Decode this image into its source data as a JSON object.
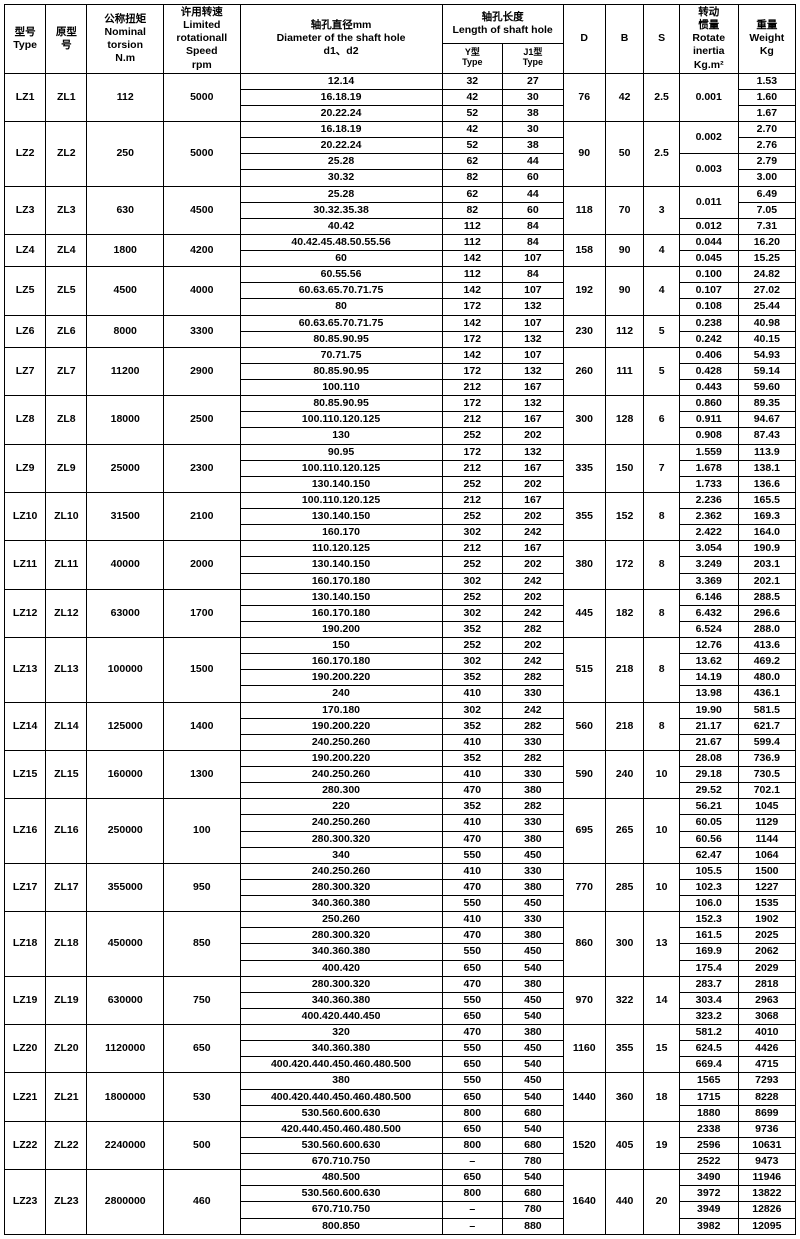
{
  "headers": {
    "type": "型号\nType",
    "orig": "原型\n号",
    "torsion": "公称扭矩\nNominal\ntorsion\nN.m",
    "speed": "许用转速\nLimited\nrotationall\nSpeed\nrpm",
    "dia": "轴孔直径mm\nDiameter of the shaft hole\nd1、d2",
    "len": "轴孔长度\nLength of shaft hole",
    "ytype": "Y型\nType",
    "j1type": "J1型\nType",
    "D": "D",
    "B": "B",
    "S": "S",
    "inertia": "转动\n惯量\nRotate\ninertia\nKg.m²",
    "weight": "重量\nWeight\nKg"
  },
  "groups": [
    {
      "type": "LZ1",
      "orig": "ZL1",
      "tor": "112",
      "rpm": "5000",
      "D": "76",
      "B": "42",
      "S": "2.5",
      "rows": [
        {
          "dia": "12.14",
          "y": "32",
          "j": "27",
          "in": "0.001",
          "wt": "1.53",
          "inSpan": 3
        },
        {
          "dia": "16.18.19",
          "y": "42",
          "j": "30",
          "wt": "1.60"
        },
        {
          "dia": "20.22.24",
          "y": "52",
          "j": "38",
          "wt": "1.67"
        }
      ]
    },
    {
      "type": "LZ2",
      "orig": "ZL2",
      "tor": "250",
      "rpm": "5000",
      "D": "90",
      "B": "50",
      "S": "2.5",
      "rows": [
        {
          "dia": "16.18.19",
          "y": "42",
          "j": "30",
          "in": "0.002",
          "wt": "2.70",
          "inSpan": 2
        },
        {
          "dia": "20.22.24",
          "y": "52",
          "j": "38",
          "wt": "2.76"
        },
        {
          "dia": "25.28",
          "y": "62",
          "j": "44",
          "in": "0.003",
          "wt": "2.79",
          "inSpan": 2
        },
        {
          "dia": "30.32",
          "y": "82",
          "j": "60",
          "wt": "3.00"
        }
      ]
    },
    {
      "type": "LZ3",
      "orig": "ZL3",
      "tor": "630",
      "rpm": "4500",
      "D": "118",
      "B": "70",
      "S": "3",
      "rows": [
        {
          "dia": "25.28",
          "y": "62",
          "j": "44",
          "in": "0.011",
          "wt": "6.49",
          "inSpan": 2
        },
        {
          "dia": "30.32.35.38",
          "y": "82",
          "j": "60",
          "wt": "7.05"
        },
        {
          "dia": "40.42",
          "y": "112",
          "j": "84",
          "in": "0.012",
          "wt": "7.31",
          "inSpan": 1
        }
      ]
    },
    {
      "type": "LZ4",
      "orig": "ZL4",
      "tor": "1800",
      "rpm": "4200",
      "D": "158",
      "B": "90",
      "S": "4",
      "rows": [
        {
          "dia": "40.42.45.48.50.55.56",
          "y": "112",
          "j": "84",
          "in": "0.044",
          "wt": "16.20",
          "inSpan": 1
        },
        {
          "dia": "60",
          "y": "142",
          "j": "107",
          "in": "0.045",
          "wt": "15.25",
          "inSpan": 1
        }
      ]
    },
    {
      "type": "LZ5",
      "orig": "ZL5",
      "tor": "4500",
      "rpm": "4000",
      "D": "192",
      "B": "90",
      "S": "4",
      "rows": [
        {
          "dia": "60.55.56",
          "y": "112",
          "j": "84",
          "in": "0.100",
          "wt": "24.82",
          "inSpan": 1
        },
        {
          "dia": "60.63.65.70.71.75",
          "y": "142",
          "j": "107",
          "in": "0.107",
          "wt": "27.02",
          "inSpan": 1
        },
        {
          "dia": "80",
          "y": "172",
          "j": "132",
          "in": "0.108",
          "wt": "25.44",
          "inSpan": 1
        }
      ]
    },
    {
      "type": "LZ6",
      "orig": "ZL6",
      "tor": "8000",
      "rpm": "3300",
      "D": "230",
      "B": "112",
      "S": "5",
      "rows": [
        {
          "dia": "60.63.65.70.71.75",
          "y": "142",
          "j": "107",
          "in": "0.238",
          "wt": "40.98",
          "inSpan": 1
        },
        {
          "dia": "80.85.90.95",
          "y": "172",
          "j": "132",
          "in": "0.242",
          "wt": "40.15",
          "inSpan": 1
        }
      ]
    },
    {
      "type": "LZ7",
      "orig": "ZL7",
      "tor": "11200",
      "rpm": "2900",
      "D": "260",
      "B": "111",
      "S": "5",
      "rows": [
        {
          "dia": "70.71.75",
          "y": "142",
          "j": "107",
          "in": "0.406",
          "wt": "54.93",
          "inSpan": 1
        },
        {
          "dia": "80.85.90.95",
          "y": "172",
          "j": "132",
          "in": "0.428",
          "wt": "59.14",
          "inSpan": 1
        },
        {
          "dia": "100.110",
          "y": "212",
          "j": "167",
          "in": "0.443",
          "wt": "59.60",
          "inSpan": 1
        }
      ]
    },
    {
      "type": "LZ8",
      "orig": "ZL8",
      "tor": "18000",
      "rpm": "2500",
      "D": "300",
      "B": "128",
      "S": "6",
      "rows": [
        {
          "dia": "80.85.90.95",
          "y": "172",
          "j": "132",
          "in": "0.860",
          "wt": "89.35",
          "inSpan": 1
        },
        {
          "dia": "100.110.120.125",
          "y": "212",
          "j": "167",
          "in": "0.911",
          "wt": "94.67",
          "inSpan": 1
        },
        {
          "dia": "130",
          "y": "252",
          "j": "202",
          "in": "0.908",
          "wt": "87.43",
          "inSpan": 1
        }
      ]
    },
    {
      "type": "LZ9",
      "orig": "ZL9",
      "tor": "25000",
      "rpm": "2300",
      "D": "335",
      "B": "150",
      "S": "7",
      "rows": [
        {
          "dia": "90.95",
          "y": "172",
          "j": "132",
          "in": "1.559",
          "wt": "113.9",
          "inSpan": 1
        },
        {
          "dia": "100.110.120.125",
          "y": "212",
          "j": "167",
          "in": "1.678",
          "wt": "138.1",
          "inSpan": 1
        },
        {
          "dia": "130.140.150",
          "y": "252",
          "j": "202",
          "in": "1.733",
          "wt": "136.6",
          "inSpan": 1
        }
      ]
    },
    {
      "type": "LZ10",
      "orig": "ZL10",
      "tor": "31500",
      "rpm": "2100",
      "D": "355",
      "B": "152",
      "S": "8",
      "rows": [
        {
          "dia": "100.110.120.125",
          "y": "212",
          "j": "167",
          "in": "2.236",
          "wt": "165.5",
          "inSpan": 1
        },
        {
          "dia": "130.140.150",
          "y": "252",
          "j": "202",
          "in": "2.362",
          "wt": "169.3",
          "inSpan": 1
        },
        {
          "dia": "160.170",
          "y": "302",
          "j": "242",
          "in": "2.422",
          "wt": "164.0",
          "inSpan": 1
        }
      ]
    },
    {
      "type": "LZ11",
      "orig": "ZL11",
      "tor": "40000",
      "rpm": "2000",
      "D": "380",
      "B": "172",
      "S": "8",
      "rows": [
        {
          "dia": "110.120.125",
          "y": "212",
          "j": "167",
          "in": "3.054",
          "wt": "190.9",
          "inSpan": 1
        },
        {
          "dia": "130.140.150",
          "y": "252",
          "j": "202",
          "in": "3.249",
          "wt": "203.1",
          "inSpan": 1
        },
        {
          "dia": "160.170.180",
          "y": "302",
          "j": "242",
          "in": "3.369",
          "wt": "202.1",
          "inSpan": 1
        }
      ]
    },
    {
      "type": "LZ12",
      "orig": "ZL12",
      "tor": "63000",
      "rpm": "1700",
      "D": "445",
      "B": "182",
      "S": "8",
      "rows": [
        {
          "dia": "130.140.150",
          "y": "252",
          "j": "202",
          "in": "6.146",
          "wt": "288.5",
          "inSpan": 1
        },
        {
          "dia": "160.170.180",
          "y": "302",
          "j": "242",
          "in": "6.432",
          "wt": "296.6",
          "inSpan": 1
        },
        {
          "dia": "190.200",
          "y": "352",
          "j": "282",
          "in": "6.524",
          "wt": "288.0",
          "inSpan": 1
        }
      ]
    },
    {
      "type": "LZ13",
      "orig": "ZL13",
      "tor": "100000",
      "rpm": "1500",
      "D": "515",
      "B": "218",
      "S": "8",
      "rows": [
        {
          "dia": "150",
          "y": "252",
          "j": "202",
          "in": "12.76",
          "wt": "413.6",
          "inSpan": 1
        },
        {
          "dia": "160.170.180",
          "y": "302",
          "j": "242",
          "in": "13.62",
          "wt": "469.2",
          "inSpan": 1
        },
        {
          "dia": "190.200.220",
          "y": "352",
          "j": "282",
          "in": "14.19",
          "wt": "480.0",
          "inSpan": 1
        },
        {
          "dia": "240",
          "y": "410",
          "j": "330",
          "in": "13.98",
          "wt": "436.1",
          "inSpan": 1
        }
      ]
    },
    {
      "type": "LZ14",
      "orig": "ZL14",
      "tor": "125000",
      "rpm": "1400",
      "D": "560",
      "B": "218",
      "S": "8",
      "rows": [
        {
          "dia": "170.180",
          "y": "302",
          "j": "242",
          "in": "19.90",
          "wt": "581.5",
          "inSpan": 1
        },
        {
          "dia": "190.200.220",
          "y": "352",
          "j": "282",
          "in": "21.17",
          "wt": "621.7",
          "inSpan": 1
        },
        {
          "dia": "240.250.260",
          "y": "410",
          "j": "330",
          "in": "21.67",
          "wt": "599.4",
          "inSpan": 1
        }
      ]
    },
    {
      "type": "LZ15",
      "orig": "ZL15",
      "tor": "160000",
      "rpm": "1300",
      "D": "590",
      "B": "240",
      "S": "10",
      "rows": [
        {
          "dia": "190.200.220",
          "y": "352",
          "j": "282",
          "in": "28.08",
          "wt": "736.9",
          "inSpan": 1
        },
        {
          "dia": "240.250.260",
          "y": "410",
          "j": "330",
          "in": "29.18",
          "wt": "730.5",
          "inSpan": 1
        },
        {
          "dia": "280.300",
          "y": "470",
          "j": "380",
          "in": "29.52",
          "wt": "702.1",
          "inSpan": 1
        }
      ]
    },
    {
      "type": "LZ16",
      "orig": "ZL16",
      "tor": "250000",
      "rpm": "100",
      "D": "695",
      "B": "265",
      "S": "10",
      "rows": [
        {
          "dia": "220",
          "y": "352",
          "j": "282",
          "in": "56.21",
          "wt": "1045",
          "inSpan": 1
        },
        {
          "dia": "240.250.260",
          "y": "410",
          "j": "330",
          "in": "60.05",
          "wt": "1129",
          "inSpan": 1
        },
        {
          "dia": "280.300.320",
          "y": "470",
          "j": "380",
          "in": "60.56",
          "wt": "1144",
          "inSpan": 1
        },
        {
          "dia": "340",
          "y": "550",
          "j": "450",
          "in": "62.47",
          "wt": "1064",
          "inSpan": 1
        }
      ]
    },
    {
      "type": "LZ17",
      "orig": "ZL17",
      "tor": "355000",
      "rpm": "950",
      "D": "770",
      "B": "285",
      "S": "10",
      "rows": [
        {
          "dia": "240.250.260",
          "y": "410",
          "j": "330",
          "in": "105.5",
          "wt": "1500",
          "inSpan": 1
        },
        {
          "dia": "280.300.320",
          "y": "470",
          "j": "380",
          "in": "102.3",
          "wt": "1227",
          "inSpan": 1
        },
        {
          "dia": "340.360.380",
          "y": "550",
          "j": "450",
          "in": "106.0",
          "wt": "1535",
          "inSpan": 1
        }
      ]
    },
    {
      "type": "LZ18",
      "orig": "ZL18",
      "tor": "450000",
      "rpm": "850",
      "D": "860",
      "B": "300",
      "S": "13",
      "rows": [
        {
          "dia": "250.260",
          "y": "410",
          "j": "330",
          "in": "152.3",
          "wt": "1902",
          "inSpan": 1
        },
        {
          "dia": "280.300.320",
          "y": "470",
          "j": "380",
          "in": "161.5",
          "wt": "2025",
          "inSpan": 1
        },
        {
          "dia": "340.360.380",
          "y": "550",
          "j": "450",
          "in": "169.9",
          "wt": "2062",
          "inSpan": 1
        },
        {
          "dia": "400.420",
          "y": "650",
          "j": "540",
          "in": "175.4",
          "wt": "2029",
          "inSpan": 1
        }
      ]
    },
    {
      "type": "LZ19",
      "orig": "ZL19",
      "tor": "630000",
      "rpm": "750",
      "D": "970",
      "B": "322",
      "S": "14",
      "rows": [
        {
          "dia": "280.300.320",
          "y": "470",
          "j": "380",
          "in": "283.7",
          "wt": "2818",
          "inSpan": 1
        },
        {
          "dia": "340.360.380",
          "y": "550",
          "j": "450",
          "in": "303.4",
          "wt": "2963",
          "inSpan": 1
        },
        {
          "dia": "400.420.440.450",
          "y": "650",
          "j": "540",
          "in": "323.2",
          "wt": "3068",
          "inSpan": 1
        }
      ]
    },
    {
      "type": "LZ20",
      "orig": "ZL20",
      "tor": "1120000",
      "rpm": "650",
      "D": "1160",
      "B": "355",
      "S": "15",
      "rows": [
        {
          "dia": "320",
          "y": "470",
          "j": "380",
          "in": "581.2",
          "wt": "4010",
          "inSpan": 1
        },
        {
          "dia": "340.360.380",
          "y": "550",
          "j": "450",
          "in": "624.5",
          "wt": "4426",
          "inSpan": 1
        },
        {
          "dia": "400.420.440.450.460.480.500",
          "y": "650",
          "j": "540",
          "in": "669.4",
          "wt": "4715",
          "inSpan": 1
        }
      ]
    },
    {
      "type": "LZ21",
      "orig": "ZL21",
      "tor": "1800000",
      "rpm": "530",
      "D": "1440",
      "B": "360",
      "S": "18",
      "rows": [
        {
          "dia": "380",
          "y": "550",
          "j": "450",
          "in": "1565",
          "wt": "7293",
          "inSpan": 1
        },
        {
          "dia": "400.420.440.450.460.480.500",
          "y": "650",
          "j": "540",
          "in": "1715",
          "wt": "8228",
          "inSpan": 1
        },
        {
          "dia": "530.560.600.630",
          "y": "800",
          "j": "680",
          "in": "1880",
          "wt": "8699",
          "inSpan": 1
        }
      ]
    },
    {
      "type": "LZ22",
      "orig": "ZL22",
      "tor": "2240000",
      "rpm": "500",
      "D": "1520",
      "B": "405",
      "S": "19",
      "rows": [
        {
          "dia": "420.440.450.460.480.500",
          "y": "650",
          "j": "540",
          "in": "2338",
          "wt": "9736",
          "inSpan": 1
        },
        {
          "dia": "530.560.600.630",
          "y": "800",
          "j": "680",
          "in": "2596",
          "wt": "10631",
          "inSpan": 1
        },
        {
          "dia": "670.710.750",
          "y": "–",
          "j": "780",
          "in": "2522",
          "wt": "9473",
          "inSpan": 1
        }
      ]
    },
    {
      "type": "LZ23",
      "orig": "ZL23",
      "tor": "2800000",
      "rpm": "460",
      "D": "1640",
      "B": "440",
      "S": "20",
      "rows": [
        {
          "dia": "480.500",
          "y": "650",
          "j": "540",
          "in": "3490",
          "wt": "11946",
          "inSpan": 1
        },
        {
          "dia": "530.560.600.630",
          "y": "800",
          "j": "680",
          "in": "3972",
          "wt": "13822",
          "inSpan": 1
        },
        {
          "dia": "670.710.750",
          "y": "–",
          "j": "780",
          "in": "3949",
          "wt": "12826",
          "inSpan": 1
        },
        {
          "dia": "800.850",
          "y": "–",
          "j": "880",
          "in": "3982",
          "wt": "12095",
          "inSpan": 1
        }
      ]
    }
  ]
}
